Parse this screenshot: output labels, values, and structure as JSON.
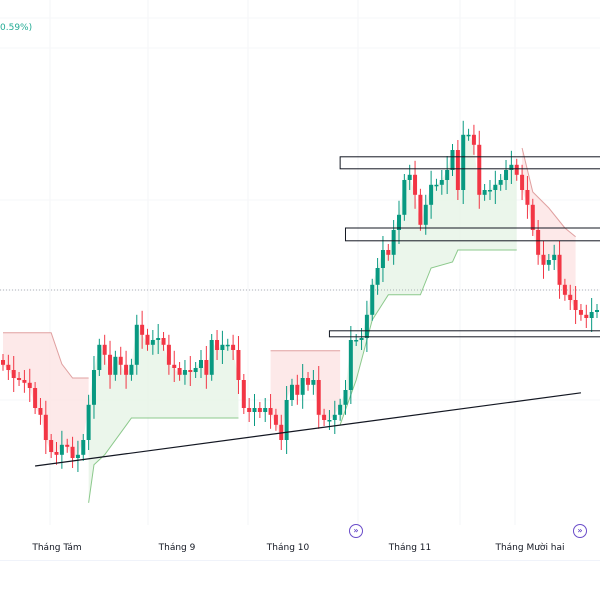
{
  "header": {
    "change_text": "0.59%)"
  },
  "colors": {
    "up": "#089981",
    "down": "#f23645",
    "support_fill": "#e6f4e6",
    "resistance_fill": "#fde4e4",
    "support_line": "#8cc98c",
    "resistance_line": "#e0a0a0",
    "drawing": "#131722",
    "goto_icon": "#6a4cc9"
  },
  "chart_data": {
    "type": "candlestick",
    "title": "",
    "xlabel": "",
    "ylabel": "",
    "x_tick_labels": [
      "Tháng Tám",
      "Tháng 9",
      "Tháng 10",
      "Tháng 11",
      "Tháng Mười hai"
    ],
    "y_axis_visible": false,
    "ylim": [
      0,
      130
    ],
    "grid": true,
    "close": [
      38.8,
      37.5,
      35.5,
      35,
      34.3,
      33,
      28,
      26.3,
      20,
      17,
      16.3,
      18.8,
      18.3,
      15.5,
      16.3,
      20,
      28.8,
      37.5,
      43.8,
      41.3,
      36.3,
      40.8,
      38.8,
      36.3,
      38.8,
      48.8,
      46.3,
      43.8,
      45,
      45.5,
      43.8,
      38.8,
      38,
      36.3,
      37.5,
      37,
      38,
      40,
      36.3,
      45,
      42.5,
      43.8,
      43.8,
      42.5,
      35,
      28,
      27,
      28,
      27,
      28,
      26.3,
      23.8,
      20,
      30,
      33.8,
      31.3,
      35.5,
      33.8,
      35,
      26.3,
      25,
      25,
      26.3,
      28.8,
      32.5,
      45,
      45,
      45.5,
      51.3,
      58.8,
      63,
      67.5,
      66.3,
      72.5,
      76.3,
      85,
      86.3,
      81.3,
      73.8,
      78.8,
      83.8,
      83.8,
      85,
      87.5,
      92.5,
      82.5,
      96.3,
      96.3,
      93.8,
      81.3,
      82.5,
      82.5,
      83.8,
      85,
      87.5,
      88.8,
      86.3,
      82.5,
      78.8,
      72.5,
      66.3,
      63.8,
      65,
      66.3,
      58.8,
      56.3,
      55,
      52.5,
      51.3,
      50.5,
      52,
      52.5
    ],
    "trend_bands": [
      {
        "side": "resistance",
        "points": [
          [
            0,
            46.8
          ],
          [
            9,
            46.8
          ],
          [
            11,
            39
          ],
          [
            13,
            35.5
          ],
          [
            16,
            35.5
          ]
        ]
      },
      {
        "side": "support",
        "points": [
          [
            16,
            4.3
          ],
          [
            17,
            13.8
          ],
          [
            19,
            16.3
          ],
          [
            24,
            25.5
          ],
          [
            44,
            25.5
          ]
        ]
      },
      {
        "side": "resistance",
        "points": [
          [
            50,
            42.3
          ],
          [
            63,
            42.3
          ]
        ]
      },
      {
        "side": "support",
        "points": [
          [
            63,
            23.8
          ],
          [
            66,
            35
          ],
          [
            69,
            50
          ],
          [
            72,
            56.3
          ],
          [
            78,
            56.3
          ],
          [
            80,
            63
          ],
          [
            84,
            64.5
          ],
          [
            85,
            67.5
          ],
          [
            96,
            67.5
          ]
        ]
      },
      {
        "side": "resistance",
        "points": [
          [
            97,
            93
          ],
          [
            99,
            82
          ],
          [
            102,
            78
          ],
          [
            105,
            73
          ],
          [
            107,
            70.8
          ]
        ]
      }
    ],
    "trendline": [
      [
        6,
        13.5
      ],
      [
        108,
        31.8
      ]
    ],
    "zones": [
      {
        "start": 63,
        "top": 90.8,
        "bottom": 87.8
      },
      {
        "start": 64,
        "top": 73,
        "bottom": 69.8
      },
      {
        "start": 61,
        "top": 47.3,
        "bottom": 45.8
      }
    ],
    "last_price_line": 57.5
  }
}
